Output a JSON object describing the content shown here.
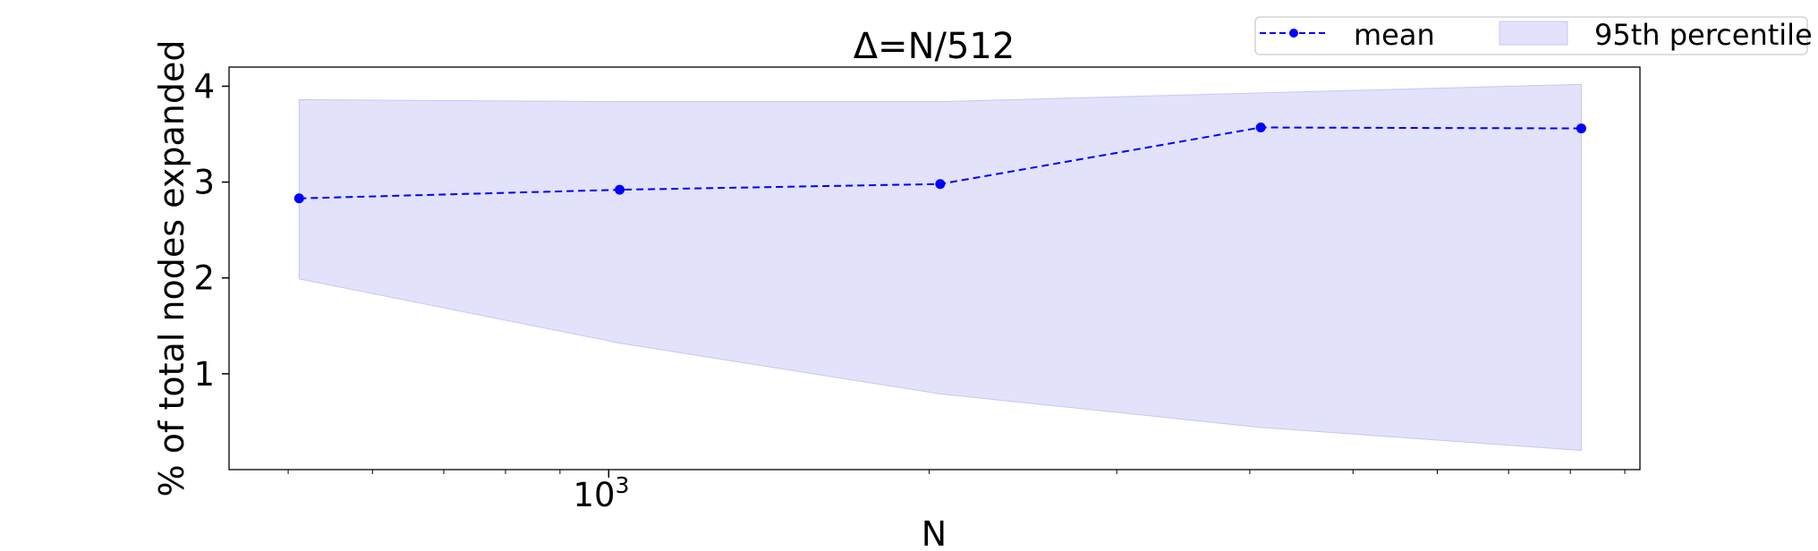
{
  "chart_data": {
    "type": "line",
    "title": "Δ=N/512",
    "xlabel": "N",
    "ylabel": "% of total nodes expanded",
    "xscale": "log",
    "xlim": [
      440,
      9300
    ],
    "ylim": [
      0.0,
      4.2
    ],
    "x_tick_label": {
      "value": 1000,
      "base": "10",
      "exponent": "3"
    },
    "y_tick_labels": [
      "1",
      "2",
      "3",
      "4"
    ],
    "y_ticks": [
      1,
      2,
      3,
      4
    ],
    "grid": false,
    "legend": {
      "placement": "top-right, above plot",
      "orientation": "horizontal"
    },
    "series": [
      {
        "name": "mean",
        "style": "dashed line with circle markers",
        "color": "#0000ff",
        "x": [
          512,
          1024,
          2048,
          4096,
          8192
        ],
        "y": [
          2.83,
          2.92,
          2.98,
          3.57,
          3.56
        ]
      }
    ],
    "band": {
      "name": "95th percentile",
      "color": "#e2e2fb",
      "edge_color": "#c7c7f3",
      "x": [
        512,
        1024,
        2048,
        4096,
        8192
      ],
      "lower": [
        1.99,
        1.32,
        0.79,
        0.44,
        0.2
      ],
      "upper": [
        3.86,
        3.84,
        3.84,
        3.93,
        4.02
      ]
    }
  }
}
